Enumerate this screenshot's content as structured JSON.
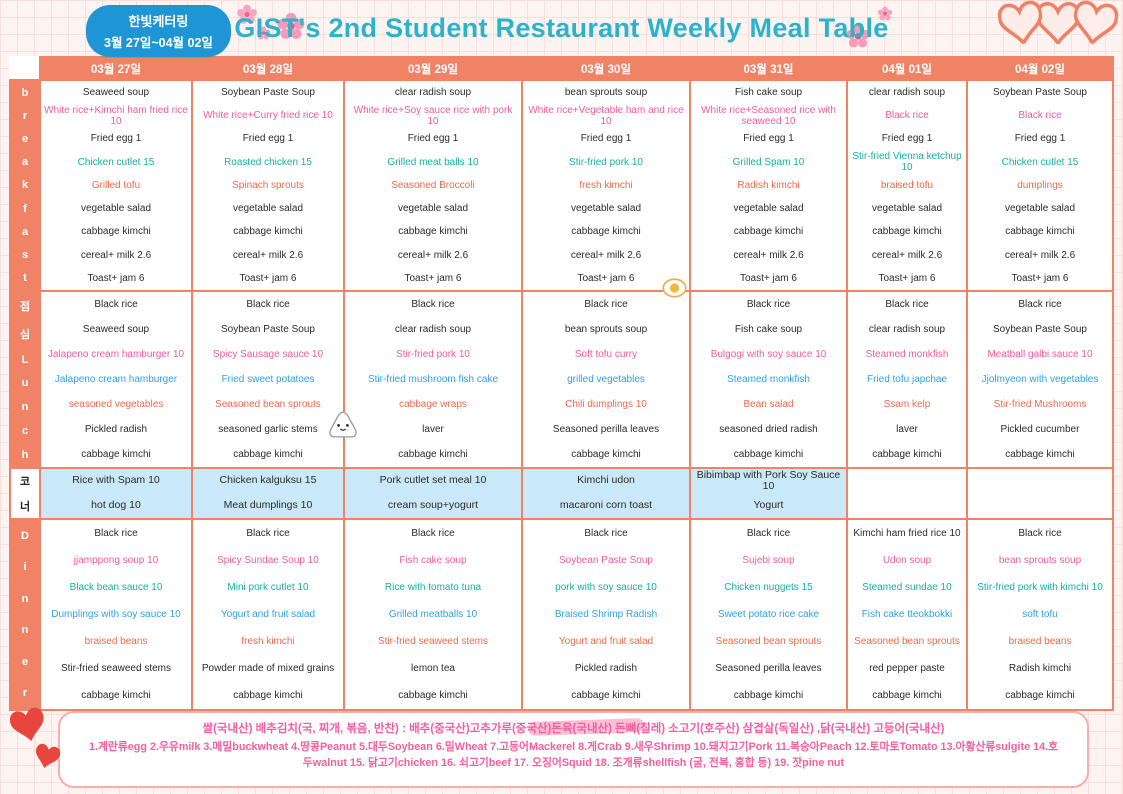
{
  "header": {
    "badge_line1": "한빛케터링",
    "badge_line2": "3월 27일~04월 02일",
    "title": "GIST's 2nd Student Restaurant Weekly Meal Table"
  },
  "columns": [
    "03월 27일",
    "03월 28일",
    "03월 29일",
    "03월 30일",
    "03월 31일",
    "04월 01일",
    "04월 02일"
  ],
  "palette": {
    "black": "#2b2b2b",
    "pink": "#f25c9b",
    "teal": "#17b0a0",
    "red": "#ef6a4b",
    "blue": "#2fa3e2",
    "salmon": "#f08266",
    "corner_blue": "#c9e9f8",
    "title_teal": "#2ab3cb",
    "badge_blue": "#1e96d6",
    "footer_pink": "#f2609e"
  },
  "icons": {
    "hearts_top": "heart-trio",
    "hearts_bottom": "heart-pair",
    "flower": "cherry-blossom",
    "egg": "fried-egg",
    "mascot": "rice-ball"
  },
  "sections": [
    {
      "id": "breakfast",
      "label_lines": [
        "b",
        "r",
        "e",
        "a",
        "k",
        "f",
        "a",
        "s",
        "t"
      ],
      "label_variant": "solid",
      "row_colors": [
        "black",
        "pink",
        "black",
        "teal",
        "red",
        "black",
        "black",
        "black",
        "black"
      ],
      "columns": [
        [
          "Seaweed soup",
          "White rice+Kimchi ham fried rice 10",
          "Fried egg 1",
          "Chicken cutlet 15",
          "Grilled tofu",
          "vegetable salad",
          "cabbage kimchi",
          "cereal+ milk 2.6",
          "Toast+ jam 6"
        ],
        [
          "Soybean Paste Soup",
          "White rice+Curry fried rice 10",
          "Fried egg 1",
          "Roasted chicken 15",
          "Spinach sprouts",
          "vegetable salad",
          "cabbage kimchi",
          "cereal+ milk 2.6",
          "Toast+ jam 6"
        ],
        [
          "clear radish soup",
          "White rice+Soy sauce rice with pork 10",
          "Fried egg 1",
          "Grilled meat balls 10",
          "Seasoned Broccoli",
          "vegetable salad",
          "cabbage kimchi",
          "cereal+ milk 2.6",
          "Toast+ jam 6"
        ],
        [
          "bean sprouts soup",
          "White rice+Vegetable ham and rice 10",
          "Fried egg 1",
          "Stir-fried pork 10",
          "fresh kimchi",
          "vegetable salad",
          "cabbage kimchi",
          "cereal+ milk 2.6",
          "Toast+ jam 6"
        ],
        [
          "Fish cake soup",
          "White rice+Seasoned rice with seaweed 10",
          "Fried egg 1",
          "Grilled Spam 10",
          "Radish kimchi",
          "vegetable salad",
          "cabbage kimchi",
          "cereal+ milk 2.6",
          "Toast+ jam 6"
        ],
        [
          "clear radish soup",
          "Black rice",
          "Fried egg 1",
          "Stir-fried Vienna ketchup 10",
          "braised tofu",
          "vegetable salad",
          "cabbage kimchi",
          "cereal+ milk 2.6",
          "Toast+ jam 6"
        ],
        [
          "Soybean Paste Soup",
          "Black rice",
          "Fried egg 1",
          "Chicken cutlet 15",
          "dumplings",
          "vegetable salad",
          "cabbage kimchi",
          "cereal+ milk 2.6",
          "Toast+ jam 6"
        ]
      ]
    },
    {
      "id": "lunch",
      "label_lines": [
        "점",
        "심",
        "L",
        "u",
        "n",
        "c",
        "h"
      ],
      "label_variant": "solid",
      "row_colors": [
        "black",
        "black",
        "pink",
        "blue",
        "red",
        "black",
        "black"
      ],
      "columns": [
        [
          "Black rice",
          "Seaweed soup",
          "Jalapeno cream hamburger 10",
          "Jalapeno cream hamburger",
          "seasoned vegetables",
          "Pickled radish",
          "cabbage kimchi"
        ],
        [
          "Black rice",
          "Soybean Paste Soup",
          "Spicy Sausage sauce 10",
          "Fried sweet potatoes",
          "Seasoned bean sprouts",
          "seasoned garlic stems",
          "cabbage kimchi"
        ],
        [
          "Black rice",
          "clear radish soup",
          "Stir-fried pork 10",
          "Stir-fried mushroom fish cake",
          "cabbage wraps",
          "laver",
          "cabbage kimchi"
        ],
        [
          "Black rice",
          "bean sprouts soup",
          "Soft tofu curry",
          "grilled vegetables",
          "Chili dumplings 10",
          "Seasoned perilla leaves",
          "cabbage kimchi"
        ],
        [
          "Black rice",
          "Fish cake soup",
          "Bulgogi with soy sauce 10",
          "Steamed monkfish",
          "Bean salad",
          "seasoned dried radish",
          "cabbage kimchi"
        ],
        [
          "Black rice",
          "clear radish soup",
          "Steamed monkfish",
          "Fried tofu japchae",
          "Ssam kelp",
          "laver",
          "cabbage kimchi"
        ],
        [
          "Black rice",
          "Soybean Paste Soup",
          "Meatball galbi sauce 10",
          "Jjolmyeon with vegetables",
          "Stir-fried Mushrooms",
          "Pickled cucumber",
          "cabbage kimchi"
        ]
      ]
    },
    {
      "id": "corner",
      "label_lines": [
        "코",
        "너"
      ],
      "label_variant": "light",
      "row_colors": [
        "black",
        "black"
      ],
      "columns": [
        [
          "Rice with Spam 10",
          "hot dog 10"
        ],
        [
          "Chicken kalguksu 15",
          "Meat dumplings 10"
        ],
        [
          "Pork cutlet set meal 10",
          "cream soup+yogurt"
        ],
        [
          "Kimchi udon",
          "macaroni corn toast"
        ],
        [
          "Bibimbap with Pork Soy Sauce 10",
          "Yogurt"
        ],
        [],
        []
      ]
    },
    {
      "id": "dinner",
      "label_lines": [
        "D",
        "i",
        "n",
        "n",
        "e",
        "r"
      ],
      "label_variant": "solid",
      "row_colors": [
        "black",
        "pink",
        "teal",
        "blue",
        "red",
        "black",
        "black"
      ],
      "columns": [
        [
          "Black rice",
          "jjamppong soup 10",
          "Black bean sauce 10",
          "Dumplings with soy sauce 10",
          "braised beans",
          "Stir-fried seaweed stems",
          "cabbage kimchi"
        ],
        [
          "Black rice",
          "Spicy Sundae Soup 10",
          "Mini pork cutlet 10",
          "Yogurt and fruit salad",
          "fresh kimchi",
          "Powder made of mixed grains",
          "cabbage kimchi"
        ],
        [
          "Black rice",
          "Fish cake soup",
          "Rice with tomato tuna",
          "Grilled meatballs 10",
          "Stir-fried seaweed stems",
          "lemon tea",
          "cabbage kimchi"
        ],
        [
          "Black rice",
          "Soybean Paste Soup",
          "pork with soy sauce 10",
          "Braised Shrimp Radish",
          "Yogurt and fruit salad",
          "Pickled radish",
          "cabbage kimchi"
        ],
        [
          "Black rice",
          "Sujebi soup",
          "Chicken nuggets 15",
          "Sweet potato rice cake",
          "Seasoned bean sprouts",
          "Seasoned perilla leaves",
          "cabbage kimchi"
        ],
        [
          "Kimchi ham fried rice 10",
          "Udon soup",
          "Steamed sundae 10",
          "Fish cake tteokbokki",
          "Seasoned bean sprouts",
          "red pepper paste",
          "cabbage kimchi"
        ],
        [
          "Black rice",
          "bean sprouts soup",
          "Stir-fried pork with kimchi 10",
          "soft tofu",
          "braised beans",
          "Radish kimchi",
          "cabbage kimchi"
        ]
      ]
    }
  ],
  "footer": {
    "origin_line": "쌀(국내산) 배추김치(국, 찌개, 볶음, 반찬) : 배추(중국산)고추가루(중국산)돈육(국내산) 돈뼈(칠레) 소고기(호주산) 삼겹살(독일산) ,닭(국내산) 고등어(국내산)",
    "allergen_line": "1.계란류egg 2.우유milk 3.메밀buckwheat 4.땅콩Peanut 5.대두Soybean 6.밀Wheat 7.고등어Mackerel 8.게Crab 9.새우Shrimp 10.돼지고기Pork 11.복숭아Peach 12.토마토Tomato 13.아황산류sulgite 14.호두walnut 15. 닭고기chicken 16. 쇠고기beef 17. 오징어Squid 18. 조개류shellfish (굴, 전복, 홍합 등) 19. 잣pine nut"
  }
}
